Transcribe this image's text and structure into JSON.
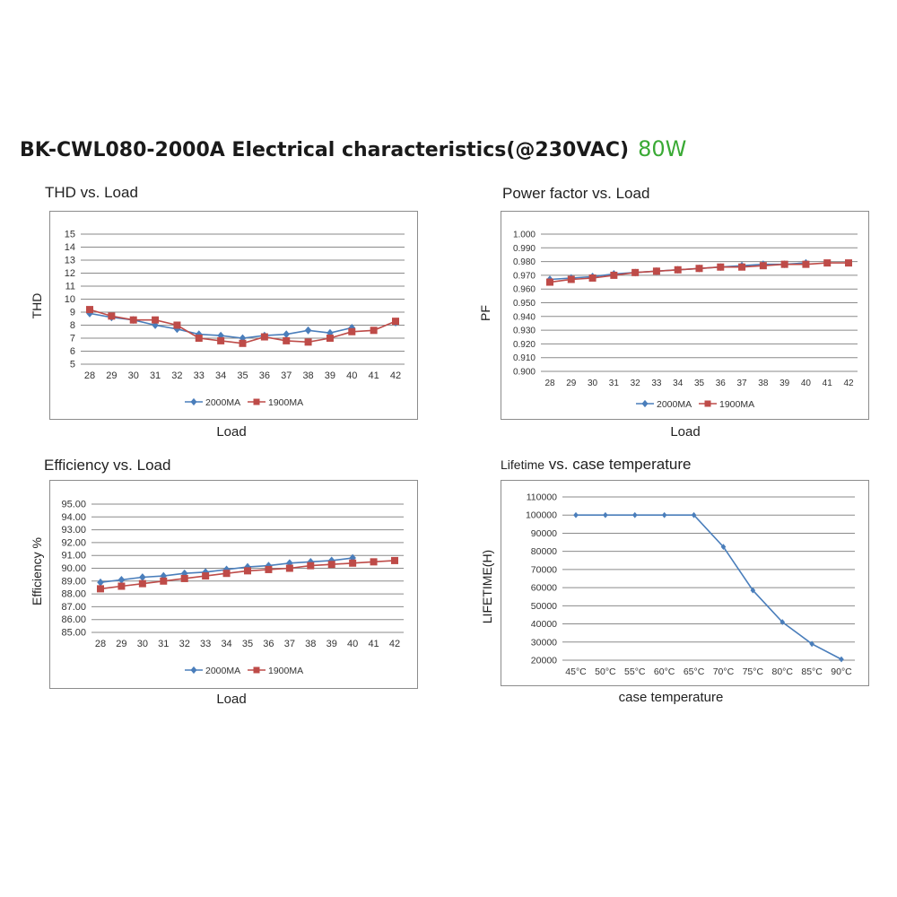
{
  "header": {
    "title": "BK-CWL080-2000A Electrical characteristics(@230VAC)",
    "power": "80W"
  },
  "colors": {
    "series_a": "#4a7ebb",
    "series_b": "#be4b48",
    "grid": "#8a8a8a"
  },
  "chart_data": [
    {
      "id": "thd",
      "type": "line",
      "title": "THD vs. Load",
      "xlabel": "Load",
      "ylabel": "THD",
      "categories": [
        "28",
        "29",
        "30",
        "31",
        "32",
        "33",
        "34",
        "35",
        "36",
        "37",
        "38",
        "39",
        "40",
        "41",
        "42"
      ],
      "ylim": [
        5,
        15
      ],
      "ystep": 1,
      "ydecimals": 0,
      "grid": true,
      "legend": "bottom",
      "series": [
        {
          "name": "2000MA",
          "marker": "diamond",
          "values": [
            8.9,
            8.6,
            8.4,
            8.0,
            7.7,
            7.3,
            7.2,
            7.0,
            7.2,
            7.3,
            7.6,
            7.4,
            7.8,
            null,
            8.2
          ]
        },
        {
          "name": "1900MA",
          "marker": "square",
          "values": [
            9.2,
            8.7,
            8.4,
            8.4,
            8.0,
            7.0,
            6.8,
            6.6,
            7.1,
            6.8,
            6.7,
            7.0,
            7.5,
            7.6,
            8.3
          ]
        }
      ]
    },
    {
      "id": "pf",
      "type": "line",
      "title": "Power factor vs. Load",
      "xlabel": "Load",
      "ylabel": "PF",
      "categories": [
        "28",
        "29",
        "30",
        "31",
        "32",
        "33",
        "34",
        "35",
        "36",
        "37",
        "38",
        "39",
        "40",
        "41",
        "42"
      ],
      "ylim": [
        0.9,
        1.0
      ],
      "ystep": 0.01,
      "ydecimals": 3,
      "grid": true,
      "legend": "bottom",
      "series": [
        {
          "name": "2000MA",
          "marker": "diamond",
          "values": [
            0.967,
            0.968,
            0.969,
            0.971,
            0.972,
            0.973,
            0.974,
            0.975,
            0.976,
            0.977,
            0.978,
            0.978,
            0.979,
            null,
            null
          ]
        },
        {
          "name": "1900MA",
          "marker": "square",
          "values": [
            0.965,
            0.967,
            0.968,
            0.97,
            0.972,
            0.973,
            0.974,
            0.975,
            0.976,
            0.976,
            0.977,
            0.978,
            0.978,
            0.979,
            0.979
          ]
        }
      ]
    },
    {
      "id": "eff",
      "type": "line",
      "title": "Efficiency vs. Load",
      "xlabel": "Load",
      "ylabel": "Efficiency %",
      "categories": [
        "28",
        "29",
        "30",
        "31",
        "32",
        "33",
        "34",
        "35",
        "36",
        "37",
        "38",
        "39",
        "40",
        "41",
        "42"
      ],
      "ylim": [
        85,
        95
      ],
      "ystep": 1,
      "ydecimals": 2,
      "grid": true,
      "legend": "bottom",
      "series": [
        {
          "name": "2000MA",
          "marker": "diamond",
          "values": [
            88.9,
            89.1,
            89.3,
            89.4,
            89.6,
            89.7,
            89.9,
            90.1,
            90.2,
            90.4,
            90.5,
            90.6,
            90.8,
            null,
            null
          ]
        },
        {
          "name": "1900MA",
          "marker": "square",
          "values": [
            88.4,
            88.6,
            88.8,
            89.0,
            89.2,
            89.4,
            89.6,
            89.8,
            89.9,
            90.0,
            90.2,
            90.3,
            90.4,
            90.5,
            90.6
          ]
        }
      ]
    },
    {
      "id": "life",
      "type": "line",
      "title_prefix": "Lifetime",
      "title": "vs. case temperature",
      "xlabel": "case temperature",
      "ylabel": "LIFETIME(H)",
      "categories": [
        "45°C",
        "50°C",
        "55°C",
        "60°C",
        "65°C",
        "70°C",
        "75°C",
        "80°C",
        "85°C",
        "90°C"
      ],
      "ylim": [
        20000,
        110000
      ],
      "ystep": 10000,
      "ydecimals": 0,
      "grid": true,
      "legend": "none",
      "series": [
        {
          "name": "",
          "marker": "diamond",
          "values": [
            100000,
            100000,
            100000,
            100000,
            100000,
            82500,
            58500,
            41000,
            29000,
            20500
          ]
        }
      ]
    }
  ]
}
